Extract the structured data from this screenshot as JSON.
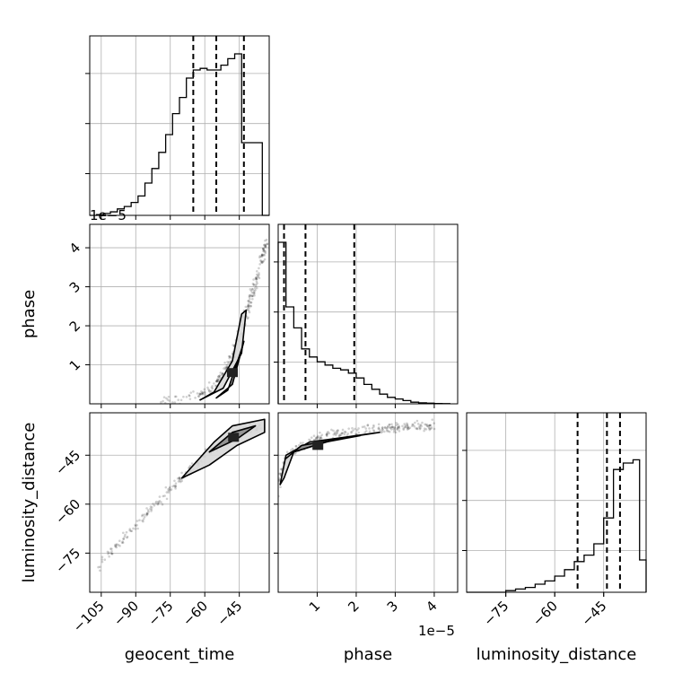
{
  "chart_data": {
    "type": "scatter",
    "subtype": "corner-plot",
    "parameters": [
      "geocent_time",
      "phase",
      "luminosity_distance"
    ],
    "axis_labels": {
      "x": [
        "geocent_time",
        "phase",
        "luminosity_distance"
      ],
      "y": [
        "phase",
        "luminosity_distance"
      ]
    },
    "offset_text": {
      "phase_y": "1e−5",
      "phase_x": "1e−5"
    },
    "ranges": {
      "geocent_time": [
        -110,
        -32
      ],
      "phase": [
        0,
        4.6
      ],
      "luminosity_distance": [
        -87,
        -32
      ]
    },
    "ticks": {
      "geocent_time": {
        "values": [
          -105,
          -90,
          -75,
          -60,
          -45
        ],
        "labels": [
          "−105",
          "−90",
          "−75",
          "−60",
          "−45"
        ]
      },
      "phase": {
        "values": [
          1,
          2,
          3,
          4
        ],
        "labels": [
          "1",
          "2",
          "3",
          "4"
        ]
      },
      "luminosity_distance": {
        "values": [
          -75,
          -60,
          -45
        ],
        "labels": [
          "−75",
          "−60",
          "−45"
        ]
      }
    },
    "histograms": [
      {
        "parameter": "geocent_time",
        "edges": [
          -110,
          -107,
          -104,
          -101,
          -98,
          -95,
          -92,
          -89,
          -86,
          -83,
          -80,
          -77,
          -74,
          -71,
          -68,
          -65,
          -62,
          -59,
          -56,
          -53,
          -50,
          -47,
          -44,
          -41,
          -38,
          -35,
          -32
        ],
        "counts": [
          0,
          0.005,
          0.012,
          0.022,
          0.04,
          0.055,
          0.08,
          0.12,
          0.2,
          0.29,
          0.39,
          0.5,
          0.63,
          0.73,
          0.85,
          0.9,
          0.91,
          0.9,
          0.9,
          0.93,
          0.97,
          1.0,
          0.45,
          0.45,
          0.45,
          0
        ],
        "quantiles": [
          -65,
          -55,
          -43
        ]
      },
      {
        "parameter": "phase",
        "edges": [
          0,
          0.2,
          0.4,
          0.6,
          0.8,
          1.0,
          1.2,
          1.4,
          1.6,
          1.8,
          2.0,
          2.2,
          2.4,
          2.6,
          2.8,
          3.0,
          3.2,
          3.4,
          3.6,
          3.8,
          4.0,
          4.2,
          4.4
        ],
        "counts": [
          1.0,
          0.6,
          0.47,
          0.34,
          0.29,
          0.26,
          0.24,
          0.22,
          0.21,
          0.19,
          0.16,
          0.12,
          0.09,
          0.06,
          0.04,
          0.03,
          0.02,
          0.01,
          0.006,
          0.004,
          0.002,
          0.001
        ],
        "quantiles": [
          0.15,
          0.7,
          1.95
        ]
      },
      {
        "parameter": "luminosity_distance",
        "edges": [
          -87,
          -84,
          -81,
          -78,
          -75,
          -72,
          -69,
          -66,
          -63,
          -60,
          -57,
          -54,
          -51,
          -48,
          -45,
          -42,
          -39,
          -36,
          -34,
          -32
        ],
        "counts": [
          0,
          0,
          0,
          0,
          0.01,
          0.02,
          0.03,
          0.05,
          0.07,
          0.1,
          0.14,
          0.19,
          0.23,
          0.3,
          0.46,
          0.76,
          0.8,
          0.82,
          0.2
        ],
        "quantiles": [
          -53,
          -44,
          -40
        ]
      }
    ],
    "scatter_panels": [
      {
        "x": "geocent_time",
        "y": "phase",
        "ridge": [
          [
            -80,
            0.05
          ],
          [
            -70,
            0.12
          ],
          [
            -62,
            0.25
          ],
          [
            -56,
            0.45
          ],
          [
            -52,
            0.75
          ],
          [
            -48,
            1.2
          ],
          [
            -44,
            1.9
          ],
          [
            -40,
            2.7
          ],
          [
            -36,
            3.5
          ],
          [
            -33,
            4.2
          ]
        ],
        "spread": 0.5,
        "contours": [
          [
            [
              -62,
              0.1
            ],
            [
              -52,
              0.4
            ],
            [
              -44,
              1.3
            ],
            [
              -42,
              2.4
            ],
            [
              -44,
              2.3
            ],
            [
              -48,
              1.1
            ],
            [
              -56,
              0.3
            ]
          ],
          [
            [
              -55,
              0.15
            ],
            [
              -48,
              0.5
            ],
            [
              -43,
              1.6
            ],
            [
              -44,
              1.4
            ],
            [
              -50,
              0.35
            ]
          ]
        ]
      },
      {
        "x": "phase",
        "y": "luminosity_distance",
        "ridge": [
          [
            0.02,
            -60
          ],
          [
            0.05,
            -52
          ],
          [
            0.15,
            -47
          ],
          [
            0.35,
            -44
          ],
          [
            0.7,
            -41
          ],
          [
            1.2,
            -39
          ],
          [
            1.8,
            -38
          ],
          [
            2.5,
            -37
          ],
          [
            3.2,
            -36.5
          ],
          [
            4.0,
            -36
          ]
        ],
        "spread": 1.5,
        "contours": [
          [
            [
              0.05,
              -54
            ],
            [
              0.2,
              -45
            ],
            [
              0.8,
              -41
            ],
            [
              2.0,
              -39
            ],
            [
              2.6,
              -38
            ],
            [
              1.5,
              -40
            ],
            [
              0.4,
              -44
            ],
            [
              0.15,
              -52
            ]
          ],
          [
            [
              0.2,
              -46
            ],
            [
              0.6,
              -42
            ],
            [
              1.6,
              -40
            ],
            [
              2.1,
              -39
            ],
            [
              1.2,
              -41
            ],
            [
              0.4,
              -44
            ]
          ]
        ]
      },
      {
        "x": "geocent_time",
        "y": "luminosity_distance",
        "ridge": [
          [
            -107,
            -80
          ],
          [
            -100,
            -74
          ],
          [
            -92,
            -68
          ],
          [
            -84,
            -62
          ],
          [
            -76,
            -56
          ],
          [
            -68,
            -51
          ],
          [
            -60,
            -45
          ],
          [
            -52,
            -41
          ],
          [
            -44,
            -38
          ],
          [
            -36,
            -36
          ]
        ],
        "spread": 2.0,
        "contours": [
          [
            [
              -70,
              -52
            ],
            [
              -56,
              -41
            ],
            [
              -48,
              -36
            ],
            [
              -34,
              -34
            ],
            [
              -34,
              -38
            ],
            [
              -46,
              -42
            ],
            [
              -58,
              -48
            ]
          ],
          [
            [
              -58,
              -44
            ],
            [
              -48,
              -38
            ],
            [
              -38,
              -36
            ],
            [
              -46,
              -40
            ]
          ]
        ]
      }
    ]
  }
}
